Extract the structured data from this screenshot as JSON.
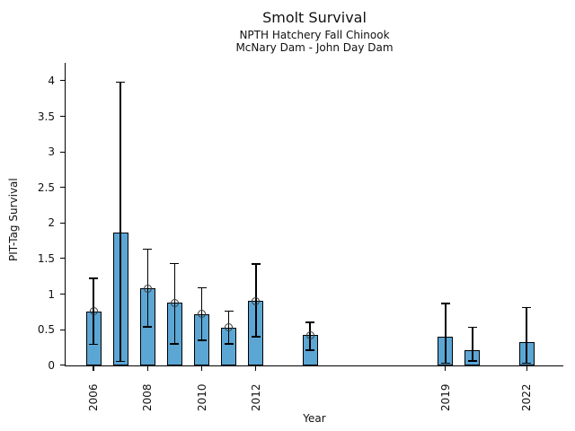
{
  "chart_data": {
    "type": "bar",
    "title": "Smolt Survival",
    "subtitle1": "NPTH Hatchery Fall Chinook",
    "subtitle2": "McNary Dam - John Day Dam",
    "xlabel": "Year",
    "ylabel": "PIT-Tag Survival",
    "bar_color": "#5CA6D4",
    "bar_edge_color": "#000000",
    "error_color": "#000000",
    "grid": false,
    "legend": "none",
    "ylim": [
      0,
      4.25
    ],
    "xlim": [
      2005,
      2023.4
    ],
    "yticks": [
      0,
      0.5,
      1,
      1.5,
      2,
      2.5,
      3,
      3.5,
      4
    ],
    "ytick_labels": [
      "0",
      "0.5",
      "1",
      "1.5",
      "2",
      "2.5",
      "3",
      "3.5",
      "4"
    ],
    "xticks": [
      2006,
      2008,
      2010,
      2012,
      2019,
      2022
    ],
    "xtick_labels": [
      "2006",
      "2008",
      "2010",
      "2012",
      "2019",
      "2022"
    ],
    "points": [
      {
        "year": 2006,
        "value": 0.76,
        "err_lo": 0.29,
        "err_hi": 1.22,
        "marker": true
      },
      {
        "year": 2007,
        "value": 1.87,
        "err_lo": 0.05,
        "err_hi": 3.98,
        "marker": false
      },
      {
        "year": 2008,
        "value": 1.08,
        "err_lo": 0.54,
        "err_hi": 1.63,
        "marker": true
      },
      {
        "year": 2009,
        "value": 0.88,
        "err_lo": 0.3,
        "err_hi": 1.43,
        "marker": true
      },
      {
        "year": 2010,
        "value": 0.72,
        "err_lo": 0.35,
        "err_hi": 1.09,
        "marker": true
      },
      {
        "year": 2011,
        "value": 0.53,
        "err_lo": 0.3,
        "err_hi": 0.76,
        "marker": true
      },
      {
        "year": 2012,
        "value": 0.9,
        "err_lo": 0.4,
        "err_hi": 1.42,
        "marker": true
      },
      {
        "year": 2014,
        "value": 0.42,
        "err_lo": 0.21,
        "err_hi": 0.6,
        "marker": true
      },
      {
        "year": 2019,
        "value": 0.4,
        "err_lo": 0.03,
        "err_hi": 0.87,
        "marker": false
      },
      {
        "year": 2020,
        "value": 0.21,
        "err_lo": 0.06,
        "err_hi": 0.53,
        "marker": false
      },
      {
        "year": 2022,
        "value": 0.32,
        "err_lo": 0.03,
        "err_hi": 0.81,
        "marker": false
      }
    ]
  }
}
